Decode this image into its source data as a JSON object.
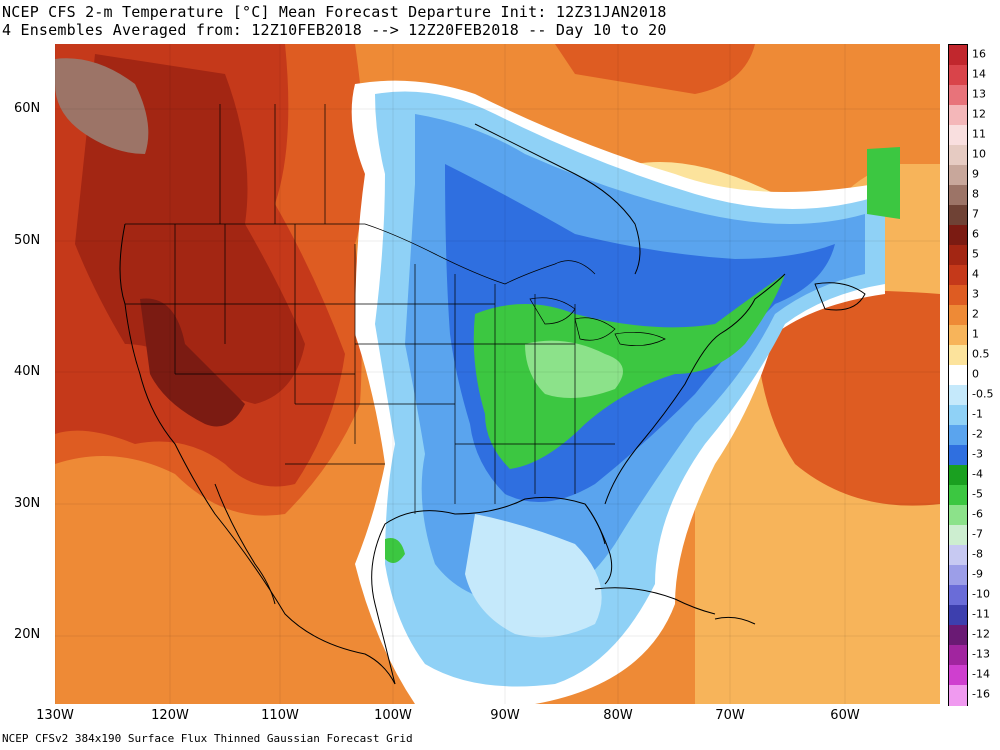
{
  "title_line1": "NCEP CFS 2-m Temperature [°C] Mean Forecast Departure Init: 12Z31JAN2018",
  "title_line2": "4 Ensembles Averaged from: 12Z10FEB2018 --> 12Z20FEB2018 -- Day 10 to 20",
  "footer": "NCEP CFSv2 384x190 Surface Flux Thinned Gaussian Forecast Grid",
  "lat_labels": [
    "60N",
    "50N",
    "40N",
    "30N",
    "20N"
  ],
  "lon_labels": [
    "130W",
    "120W",
    "110W",
    "100W",
    "90W",
    "80W",
    "70W",
    "60W"
  ],
  "colorbar": [
    {
      "label": "16",
      "color": "#c1272d"
    },
    {
      "label": "14",
      "color": "#d9444a"
    },
    {
      "label": "13",
      "color": "#e8737a"
    },
    {
      "label": "12",
      "color": "#f4b7b9"
    },
    {
      "label": "11",
      "color": "#f9dfdf"
    },
    {
      "label": "10",
      "color": "#e6cbc2"
    },
    {
      "label": "9",
      "color": "#c8a79b"
    },
    {
      "label": "8",
      "color": "#9c7467"
    },
    {
      "label": "7",
      "color": "#6f4235"
    },
    {
      "label": "6",
      "color": "#7b1b12"
    },
    {
      "label": "5",
      "color": "#a32613"
    },
    {
      "label": "4",
      "color": "#c5391a"
    },
    {
      "label": "3",
      "color": "#de5c22"
    },
    {
      "label": "2",
      "color": "#ee8a36"
    },
    {
      "label": "1",
      "color": "#f7b45a"
    },
    {
      "label": "0.5",
      "color": "#fce39c"
    },
    {
      "label": "0",
      "color": "#ffffff"
    },
    {
      "label": "-0.5",
      "color": "#c5e9fb"
    },
    {
      "label": "-1",
      "color": "#8fd1f6"
    },
    {
      "label": "-2",
      "color": "#5aa4ee"
    },
    {
      "label": "-3",
      "color": "#2f6fe0"
    },
    {
      "label": "-4",
      "color": "#1aa020"
    },
    {
      "label": "-5",
      "color": "#3cc741"
    },
    {
      "label": "-6",
      "color": "#8ce28a"
    },
    {
      "label": "-7",
      "color": "#cdeed0"
    },
    {
      "label": "-8",
      "color": "#c7c9f2"
    },
    {
      "label": "-9",
      "color": "#9c9ee8"
    },
    {
      "label": "-10",
      "color": "#6a6cd8"
    },
    {
      "label": "-11",
      "color": "#3d3fae"
    },
    {
      "label": "-12",
      "color": "#6a1a74"
    },
    {
      "label": "-13",
      "color": "#a1259f"
    },
    {
      "label": "-14",
      "color": "#cf3fcf"
    },
    {
      "label": "-16",
      "color": "#f09af0"
    }
  ]
}
